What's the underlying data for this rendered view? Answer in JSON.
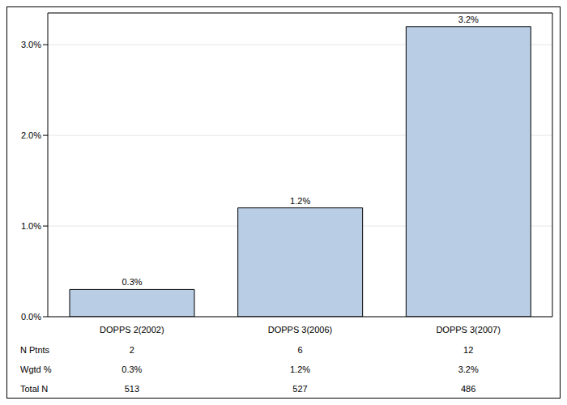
{
  "chart_data": {
    "type": "bar",
    "categories": [
      "DOPPS 2(2002)",
      "DOPPS 3(2006)",
      "DOPPS 3(2007)"
    ],
    "values": [
      0.3,
      1.2,
      3.2
    ],
    "value_labels": [
      "0.3%",
      "1.2%",
      "3.2%"
    ],
    "data_labels": true,
    "color": "#b9cde5",
    "ylim": [
      0,
      3.35
    ],
    "yticks": [
      {
        "value": 0,
        "label": "0.0%"
      },
      {
        "value": 1,
        "label": "1.0%"
      },
      {
        "value": 2,
        "label": "2.0%"
      },
      {
        "value": 3,
        "label": "3.0%"
      }
    ],
    "grid": true,
    "table": {
      "rows": [
        {
          "label": "N Ptnts",
          "values": [
            2,
            6,
            12
          ]
        },
        {
          "label": "Wgtd %",
          "values": [
            "0.3%",
            "1.2%",
            "3.2%"
          ]
        },
        {
          "label": "Total N",
          "values": [
            513,
            527,
            486
          ]
        }
      ]
    }
  }
}
